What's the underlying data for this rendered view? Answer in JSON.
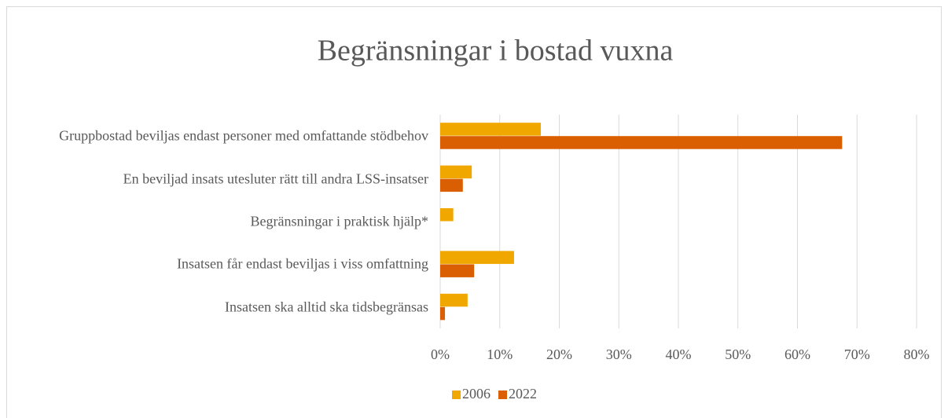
{
  "chart_data": {
    "type": "hbar",
    "title": "Begränsningar i bostad vuxna",
    "categories": [
      "Gruppbostad beviljas endast personer med omfattande stödbehov",
      "En beviljad insats utesluter rätt till andra LSS-insatser",
      "Begränsningar i praktisk hjälp*",
      "Insatsen får endast beviljas i viss omfattning",
      "Insatsen ska alltid ska tidsbegränsas"
    ],
    "series": [
      {
        "name": "2006",
        "color": "#f0a800",
        "values": [
          16.9,
          5.3,
          2.2,
          12.4,
          4.6
        ]
      },
      {
        "name": "2022",
        "color": "#d95f02",
        "values": [
          67.5,
          3.8,
          0,
          5.7,
          0.8
        ]
      }
    ],
    "xlim": [
      0,
      80
    ],
    "xticks": [
      {
        "value": 0,
        "label": "0%"
      },
      {
        "value": 10,
        "label": "10%"
      },
      {
        "value": 20,
        "label": "20%"
      },
      {
        "value": 30,
        "label": "30%"
      },
      {
        "value": 40,
        "label": "40%"
      },
      {
        "value": 50,
        "label": "50%"
      },
      {
        "value": 60,
        "label": "60%"
      },
      {
        "value": 70,
        "label": "70%"
      },
      {
        "value": 80,
        "label": "80%"
      }
    ],
    "grid": true,
    "legend": "bottom"
  }
}
